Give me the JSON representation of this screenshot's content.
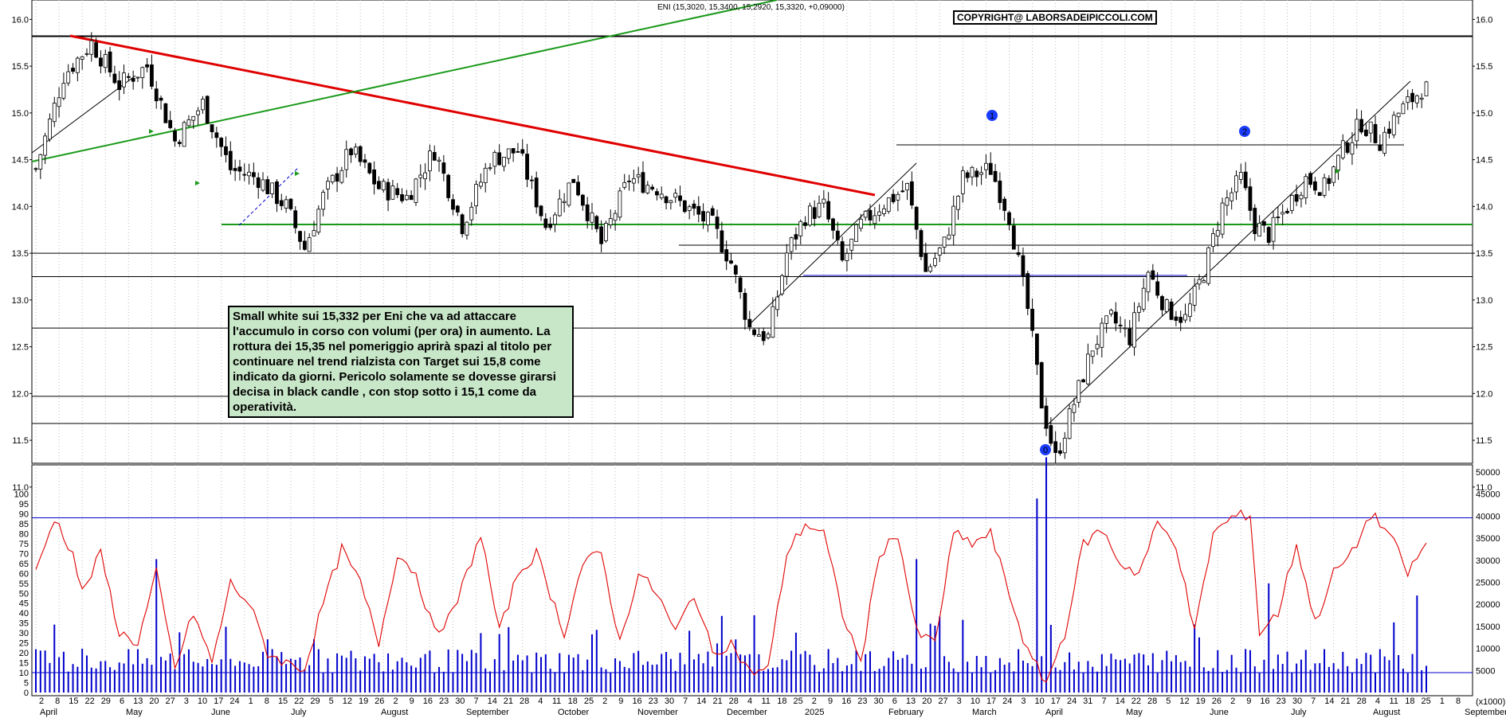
{
  "header": {
    "ticker_text": "ENI (15,3020, 15,3400, 15,2920, 15,3320, +0,09000)",
    "copyright": "COPYRIGHT@ LABORSADEIPICCOLI.COM"
  },
  "note": "Small white sui 15,332 per Eni che va ad attaccare l'accumulo in corso con volumi (per ora) in aumento. La rottura dei 15,35 nel pomeriggio aprirà spazi al titolo per continuare nel trend rialzista con Target sui 15,8 come indicato da giorni. Pericolo solamente se dovesse girarsi decisa in black candle , con stop sotto i 15,1 come da operatività.",
  "markers": [
    "0",
    "1",
    "2"
  ],
  "colors": {
    "candle_up": "#ffffff",
    "candle_down": "#000000",
    "resistance_line": "#e00000",
    "trend_green": "#1a9a1a",
    "rsi_line": "#e00000",
    "volume_bar": "#0000cc",
    "note_bg": "#c8e6c8"
  },
  "chart_data": [
    {
      "type": "candlestick",
      "title": "ENI (15,3020, 15,3400, 15,2920, 15,3320, +0,09000)",
      "ylim": [
        10.6,
        16.3
      ],
      "y_ticks": [
        "11.0",
        "11.5",
        "12.0",
        "12.5",
        "13.0",
        "13.5",
        "14.0",
        "14.5",
        "15.0",
        "15.5",
        "16.0"
      ],
      "last_close": 15.332,
      "horizontal_levels": [
        15.82,
        13.5,
        13.25,
        12.7,
        11.97,
        11.68
      ],
      "price_path": [
        [
          0,
          14.4
        ],
        [
          6,
          15.4
        ],
        [
          12,
          15.75
        ],
        [
          18,
          15.3
        ],
        [
          24,
          15.5
        ],
        [
          30,
          14.7
        ],
        [
          36,
          15.1
        ],
        [
          42,
          14.4
        ],
        [
          48,
          14.3
        ],
        [
          54,
          14.0
        ],
        [
          58,
          13.55
        ],
        [
          62,
          14.1
        ],
        [
          68,
          14.6
        ],
        [
          74,
          14.2
        ],
        [
          80,
          14.1
        ],
        [
          86,
          14.6
        ],
        [
          92,
          13.8
        ],
        [
          98,
          14.5
        ],
        [
          104,
          14.6
        ],
        [
          110,
          13.8
        ],
        [
          116,
          14.3
        ],
        [
          122,
          13.6
        ],
        [
          128,
          14.3
        ],
        [
          134,
          14.2
        ],
        [
          140,
          14.0
        ],
        [
          146,
          13.8
        ],
        [
          150,
          13.4
        ],
        [
          154,
          12.7
        ],
        [
          158,
          12.6
        ],
        [
          162,
          13.5
        ],
        [
          166,
          13.9
        ],
        [
          170,
          14.0
        ],
        [
          174,
          13.4
        ],
        [
          178,
          13.8
        ],
        [
          182,
          14.0
        ],
        [
          188,
          14.2
        ],
        [
          192,
          13.3
        ],
        [
          196,
          13.6
        ],
        [
          200,
          14.3
        ],
        [
          206,
          14.4
        ],
        [
          210,
          13.9
        ],
        [
          214,
          12.9
        ],
        [
          217,
          11.9
        ],
        [
          220,
          11.3
        ],
        [
          224,
          11.9
        ],
        [
          228,
          12.5
        ],
        [
          232,
          12.8
        ],
        [
          236,
          12.6
        ],
        [
          240,
          13.3
        ],
        [
          244,
          12.9
        ],
        [
          248,
          12.8
        ],
        [
          252,
          13.3
        ],
        [
          256,
          14.0
        ],
        [
          260,
          14.3
        ],
        [
          263,
          13.8
        ],
        [
          266,
          13.7
        ],
        [
          270,
          14.0
        ],
        [
          274,
          14.3
        ],
        [
          278,
          14.2
        ],
        [
          282,
          14.6
        ],
        [
          286,
          14.9
        ],
        [
          290,
          14.7
        ],
        [
          294,
          15.0
        ],
        [
          298,
          15.2
        ],
        [
          300,
          15.33
        ]
      ]
    },
    {
      "type": "line+bar",
      "title": "",
      "ylim_left": [
        0,
        100
      ],
      "y_ticks_left": [
        "0",
        "5",
        "10",
        "15",
        "20",
        "25",
        "30",
        "35",
        "40",
        "45",
        "50",
        "55",
        "60",
        "65",
        "70",
        "75",
        "80",
        "85",
        "90",
        "95",
        "100"
      ],
      "ylim_right": [
        0,
        50000
      ],
      "y_ticks_right": [
        "5000",
        "10000",
        "15000",
        "20000",
        "25000",
        "30000",
        "35000",
        "40000",
        "45000",
        "50000"
      ],
      "right_unit": "(x1000)",
      "rsi_levels": [
        88,
        10
      ],
      "rsi_path": [
        [
          0,
          60
        ],
        [
          4,
          88
        ],
        [
          8,
          70
        ],
        [
          10,
          50
        ],
        [
          14,
          70
        ],
        [
          18,
          30
        ],
        [
          22,
          25
        ],
        [
          26,
          60
        ],
        [
          30,
          12
        ],
        [
          34,
          40
        ],
        [
          38,
          15
        ],
        [
          42,
          55
        ],
        [
          46,
          45
        ],
        [
          50,
          20
        ],
        [
          54,
          15
        ],
        [
          58,
          12
        ],
        [
          62,
          45
        ],
        [
          66,
          72
        ],
        [
          70,
          55
        ],
        [
          74,
          25
        ],
        [
          78,
          70
        ],
        [
          82,
          60
        ],
        [
          86,
          30
        ],
        [
          90,
          40
        ],
        [
          96,
          80
        ],
        [
          100,
          30
        ],
        [
          104,
          60
        ],
        [
          108,
          70
        ],
        [
          114,
          30
        ],
        [
          118,
          65
        ],
        [
          122,
          70
        ],
        [
          126,
          25
        ],
        [
          130,
          60
        ],
        [
          134,
          50
        ],
        [
          138,
          30
        ],
        [
          142,
          50
        ],
        [
          146,
          20
        ],
        [
          150,
          25
        ],
        [
          154,
          10
        ],
        [
          158,
          12
        ],
        [
          162,
          70
        ],
        [
          166,
          85
        ],
        [
          170,
          80
        ],
        [
          174,
          40
        ],
        [
          178,
          15
        ],
        [
          182,
          70
        ],
        [
          186,
          80
        ],
        [
          190,
          30
        ],
        [
          194,
          25
        ],
        [
          198,
          80
        ],
        [
          202,
          75
        ],
        [
          206,
          80
        ],
        [
          210,
          50
        ],
        [
          214,
          20
        ],
        [
          218,
          5
        ],
        [
          222,
          30
        ],
        [
          226,
          75
        ],
        [
          230,
          82
        ],
        [
          234,
          65
        ],
        [
          238,
          60
        ],
        [
          242,
          85
        ],
        [
          246,
          75
        ],
        [
          250,
          30
        ],
        [
          254,
          80
        ],
        [
          258,
          88
        ],
        [
          262,
          90
        ],
        [
          264,
          30
        ],
        [
          268,
          40
        ],
        [
          272,
          75
        ],
        [
          276,
          35
        ],
        [
          280,
          60
        ],
        [
          284,
          70
        ],
        [
          288,
          90
        ],
        [
          292,
          80
        ],
        [
          296,
          60
        ],
        [
          300,
          75
        ]
      ],
      "volume_spikes": [
        [
          26,
          55
        ],
        [
          218,
          97
        ],
        [
          216,
          80
        ],
        [
          190,
          55
        ],
        [
          266,
          45
        ],
        [
          298,
          40
        ],
        [
          200,
          30
        ],
        [
          4,
          28
        ],
        [
          250,
          28
        ]
      ],
      "x_month_labels": [
        "April",
        "May",
        "June",
        "July",
        "August",
        "September",
        "October",
        "November",
        "December",
        "2025",
        "February",
        "March",
        "April",
        "May",
        "June",
        "July",
        "August",
        "September"
      ],
      "x_day_labels": [
        "2",
        "8",
        "15",
        "22",
        "29",
        "6",
        "13",
        "20",
        "27",
        "3",
        "10",
        "17",
        "24",
        "1",
        "8",
        "15",
        "22",
        "29",
        "5",
        "12",
        "19",
        "26",
        "2",
        "9",
        "16",
        "23",
        "30",
        "7",
        "14",
        "21",
        "28",
        "4",
        "11",
        "18",
        "25",
        "2",
        "9",
        "16",
        "23",
        "30",
        "7",
        "14",
        "21",
        "28",
        "4",
        "11",
        "18",
        "25",
        "2",
        "9",
        "16",
        "23",
        "30",
        "6",
        "13",
        "20",
        "27",
        "3",
        "10",
        "17",
        "24",
        "3",
        "10",
        "17",
        "24",
        "31",
        "7",
        "14",
        "22",
        "28",
        "5",
        "12",
        "19",
        "26",
        "2",
        "9",
        "16",
        "23",
        "30",
        "7",
        "14",
        "21",
        "28",
        "4",
        "11",
        "18",
        "25",
        "1",
        "8"
      ]
    }
  ]
}
